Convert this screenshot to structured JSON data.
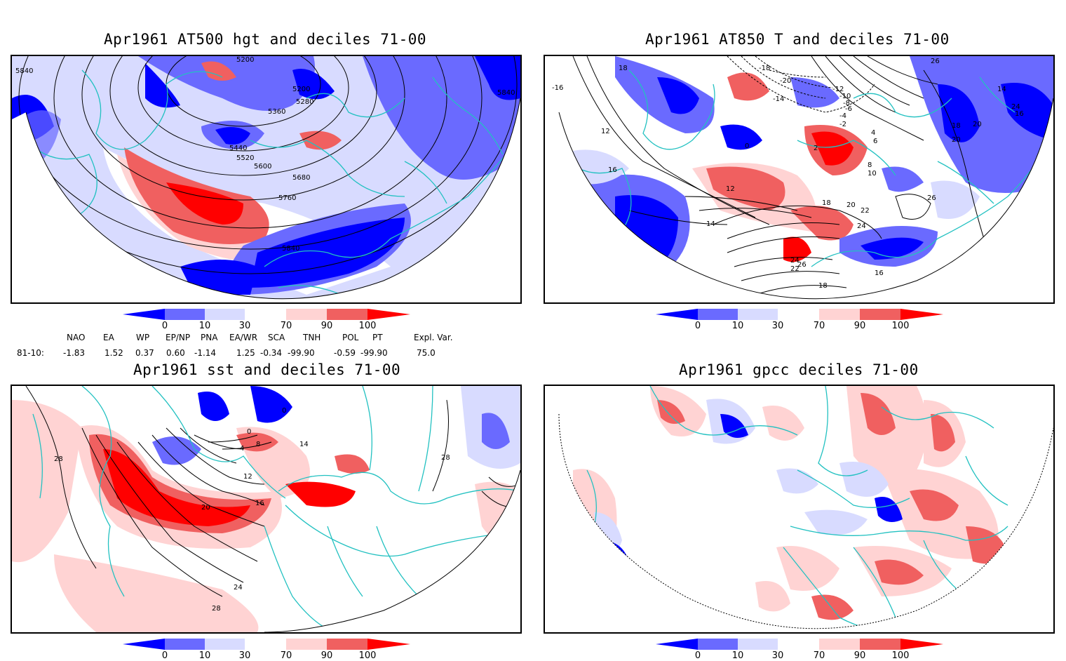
{
  "panels": [
    {
      "title": "Apr1961 AT500 hgt and deciles 71-00",
      "contour_labels": [
        "5200",
        "5200",
        "5280",
        "5360",
        "5440",
        "5520",
        "5600",
        "5680",
        "5760",
        "5840",
        "5840",
        "5840"
      ]
    },
    {
      "title": "Apr1961 AT850 T and deciles 71-00",
      "contour_labels": [
        "-16",
        "-20",
        "-18",
        "-14",
        "-12",
        "-10",
        "-8",
        "-6",
        "-4",
        "-2",
        "0",
        "2",
        "4",
        "6",
        "8",
        "10",
        "12",
        "14",
        "16",
        "18",
        "20",
        "22",
        "24",
        "26",
        "12",
        "14",
        "18",
        "20",
        "24",
        "26",
        "16",
        "18",
        "20",
        "22",
        "24",
        "26",
        "16",
        "18"
      ]
    },
    {
      "title": "Apr1961 sst and deciles 71-00",
      "contour_labels": [
        "28",
        "0",
        "0",
        "4",
        "8",
        "12",
        "16",
        "20",
        "24",
        "28",
        "14",
        "28"
      ]
    },
    {
      "title": "Apr1961 gpcc deciles 71-00",
      "contour_labels": []
    }
  ],
  "colorbar": {
    "ticks": [
      "0",
      "10",
      "30",
      "70",
      "90",
      "100"
    ],
    "colors": [
      "#0000ff",
      "#6a6aff",
      "#d8dbff",
      "#ffffff",
      "#ffd3d3",
      "#f06060",
      "#ff0000"
    ]
  },
  "indices": {
    "row_label": "81-10:",
    "names": [
      "NAO",
      "EA",
      "WP",
      "EP/NP",
      "PNA",
      "EA/WR",
      "SCA",
      "TNH",
      "POL",
      "PT",
      "Expl. Var."
    ],
    "values": [
      "-1.83",
      "1.52",
      "0.37",
      "0.60",
      "-1.14",
      "1.25",
      "-0.34",
      "-99.90",
      "-0.59",
      "-99.90",
      "75.0"
    ]
  },
  "colors": {
    "coast": "#22c1c1",
    "contour": "#000000",
    "deep_blue": "#0000ff",
    "mid_blue": "#6a6aff",
    "light_blue": "#d8dbff",
    "light_red": "#ffd3d3",
    "mid_red": "#f06060",
    "deep_red": "#ff0000"
  }
}
